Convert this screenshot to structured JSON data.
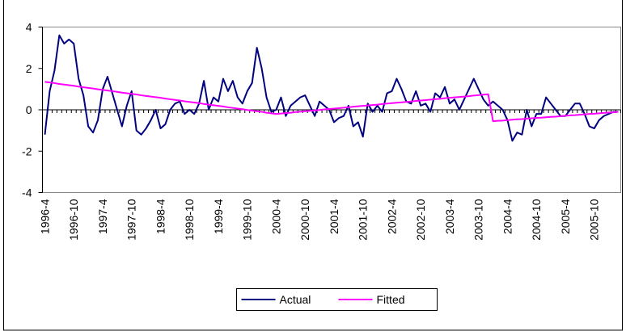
{
  "chart_data": {
    "type": "line",
    "categories": [
      "1996-4",
      null,
      null,
      null,
      null,
      null,
      "1996-10",
      null,
      null,
      null,
      null,
      null,
      "1997-4",
      null,
      null,
      null,
      null,
      null,
      "1997-10",
      null,
      null,
      null,
      null,
      null,
      "1998-4",
      null,
      null,
      null,
      null,
      null,
      "1998-10",
      null,
      null,
      null,
      null,
      null,
      "1999-4",
      null,
      null,
      null,
      null,
      null,
      "1999-10",
      null,
      null,
      null,
      null,
      null,
      "2000-4",
      null,
      null,
      null,
      null,
      null,
      "2000-10",
      null,
      null,
      null,
      null,
      null,
      "2001-4",
      null,
      null,
      null,
      null,
      null,
      "2001-10",
      null,
      null,
      null,
      null,
      null,
      "2002-4",
      null,
      null,
      null,
      null,
      null,
      "2002-10",
      null,
      null,
      null,
      null,
      null,
      "2003-4",
      null,
      null,
      null,
      null,
      null,
      "2003-10",
      null,
      null,
      null,
      null,
      null,
      "2004-4",
      null,
      null,
      null,
      null,
      null,
      "2004-10",
      null,
      null,
      null,
      null,
      null,
      "2005-4",
      null,
      null,
      null,
      null,
      null,
      "2005-10",
      null,
      null,
      null,
      null,
      null
    ],
    "series": [
      {
        "name": "Actual",
        "color": "#000080",
        "values": [
          -1.2,
          0.9,
          1.9,
          3.6,
          3.2,
          3.4,
          3.2,
          1.5,
          0.7,
          -0.8,
          -1.1,
          -0.5,
          1.0,
          1.6,
          0.8,
          0.0,
          -0.8,
          0.2,
          0.9,
          -1.0,
          -1.2,
          -0.9,
          -0.5,
          0.0,
          -0.9,
          -0.7,
          0.0,
          0.3,
          0.4,
          -0.2,
          0.0,
          -0.2,
          0.3,
          1.4,
          0.0,
          0.6,
          0.4,
          1.5,
          0.9,
          1.4,
          0.6,
          0.3,
          0.9,
          1.3,
          3.0,
          2.0,
          0.6,
          -0.1,
          0.0,
          0.6,
          -0.3,
          0.2,
          0.4,
          0.6,
          0.7,
          0.2,
          -0.3,
          0.4,
          0.2,
          0.0,
          -0.6,
          -0.4,
          -0.3,
          0.2,
          -0.8,
          -0.6,
          -1.3,
          0.3,
          -0.1,
          0.2,
          -0.1,
          0.8,
          0.9,
          1.5,
          1.0,
          0.4,
          0.3,
          0.9,
          0.2,
          0.3,
          -0.1,
          0.8,
          0.6,
          1.1,
          0.3,
          0.5,
          0.0,
          0.5,
          1.0,
          1.5,
          1.0,
          0.5,
          0.2,
          0.4,
          0.2,
          0.0,
          -0.5,
          -1.5,
          -1.1,
          -1.2,
          0.0,
          -0.8,
          -0.2,
          -0.2,
          0.6,
          0.3,
          0.0,
          -0.3,
          -0.3,
          0.0,
          0.3,
          0.3,
          -0.2,
          -0.8,
          -0.9,
          -0.5,
          -0.3,
          -0.2,
          -0.1,
          -0.1
        ]
      },
      {
        "name": "Fitted",
        "color": "#ff00ff",
        "values": [
          1.35,
          1.32,
          1.29,
          1.25,
          1.22,
          1.19,
          1.16,
          1.12,
          1.09,
          1.06,
          1.03,
          0.99,
          0.96,
          0.93,
          0.9,
          0.87,
          0.83,
          0.8,
          0.77,
          0.74,
          0.7,
          0.67,
          0.64,
          0.61,
          0.58,
          0.54,
          0.51,
          0.48,
          0.45,
          0.41,
          0.38,
          0.35,
          0.32,
          0.28,
          0.25,
          0.22,
          0.19,
          0.16,
          0.12,
          0.09,
          0.06,
          0.03,
          -0.01,
          -0.04,
          -0.07,
          -0.1,
          -0.14,
          -0.17,
          -0.2,
          -0.18,
          -0.16,
          -0.14,
          -0.11,
          -0.09,
          -0.07,
          -0.05,
          -0.03,
          -0.01,
          0.02,
          0.04,
          0.06,
          0.08,
          0.1,
          0.12,
          0.15,
          0.17,
          0.19,
          0.21,
          0.23,
          0.25,
          0.28,
          0.3,
          0.32,
          0.34,
          0.36,
          0.38,
          0.4,
          0.43,
          0.45,
          0.47,
          0.49,
          0.51,
          0.53,
          0.56,
          0.58,
          0.6,
          0.62,
          0.64,
          0.66,
          0.69,
          0.71,
          0.73,
          0.75,
          -0.55,
          -0.53,
          -0.52,
          -0.5,
          -0.48,
          -0.46,
          -0.45,
          -0.43,
          -0.41,
          -0.39,
          -0.38,
          -0.36,
          -0.34,
          -0.33,
          -0.31,
          -0.29,
          -0.27,
          -0.26,
          -0.24,
          -0.22,
          -0.2,
          -0.19,
          -0.17,
          -0.15,
          -0.13,
          -0.12,
          -0.1
        ]
      }
    ],
    "ylim": [
      -4,
      4
    ],
    "yticks": [
      -4,
      -2,
      0,
      2,
      4
    ],
    "legend": "bottom"
  }
}
